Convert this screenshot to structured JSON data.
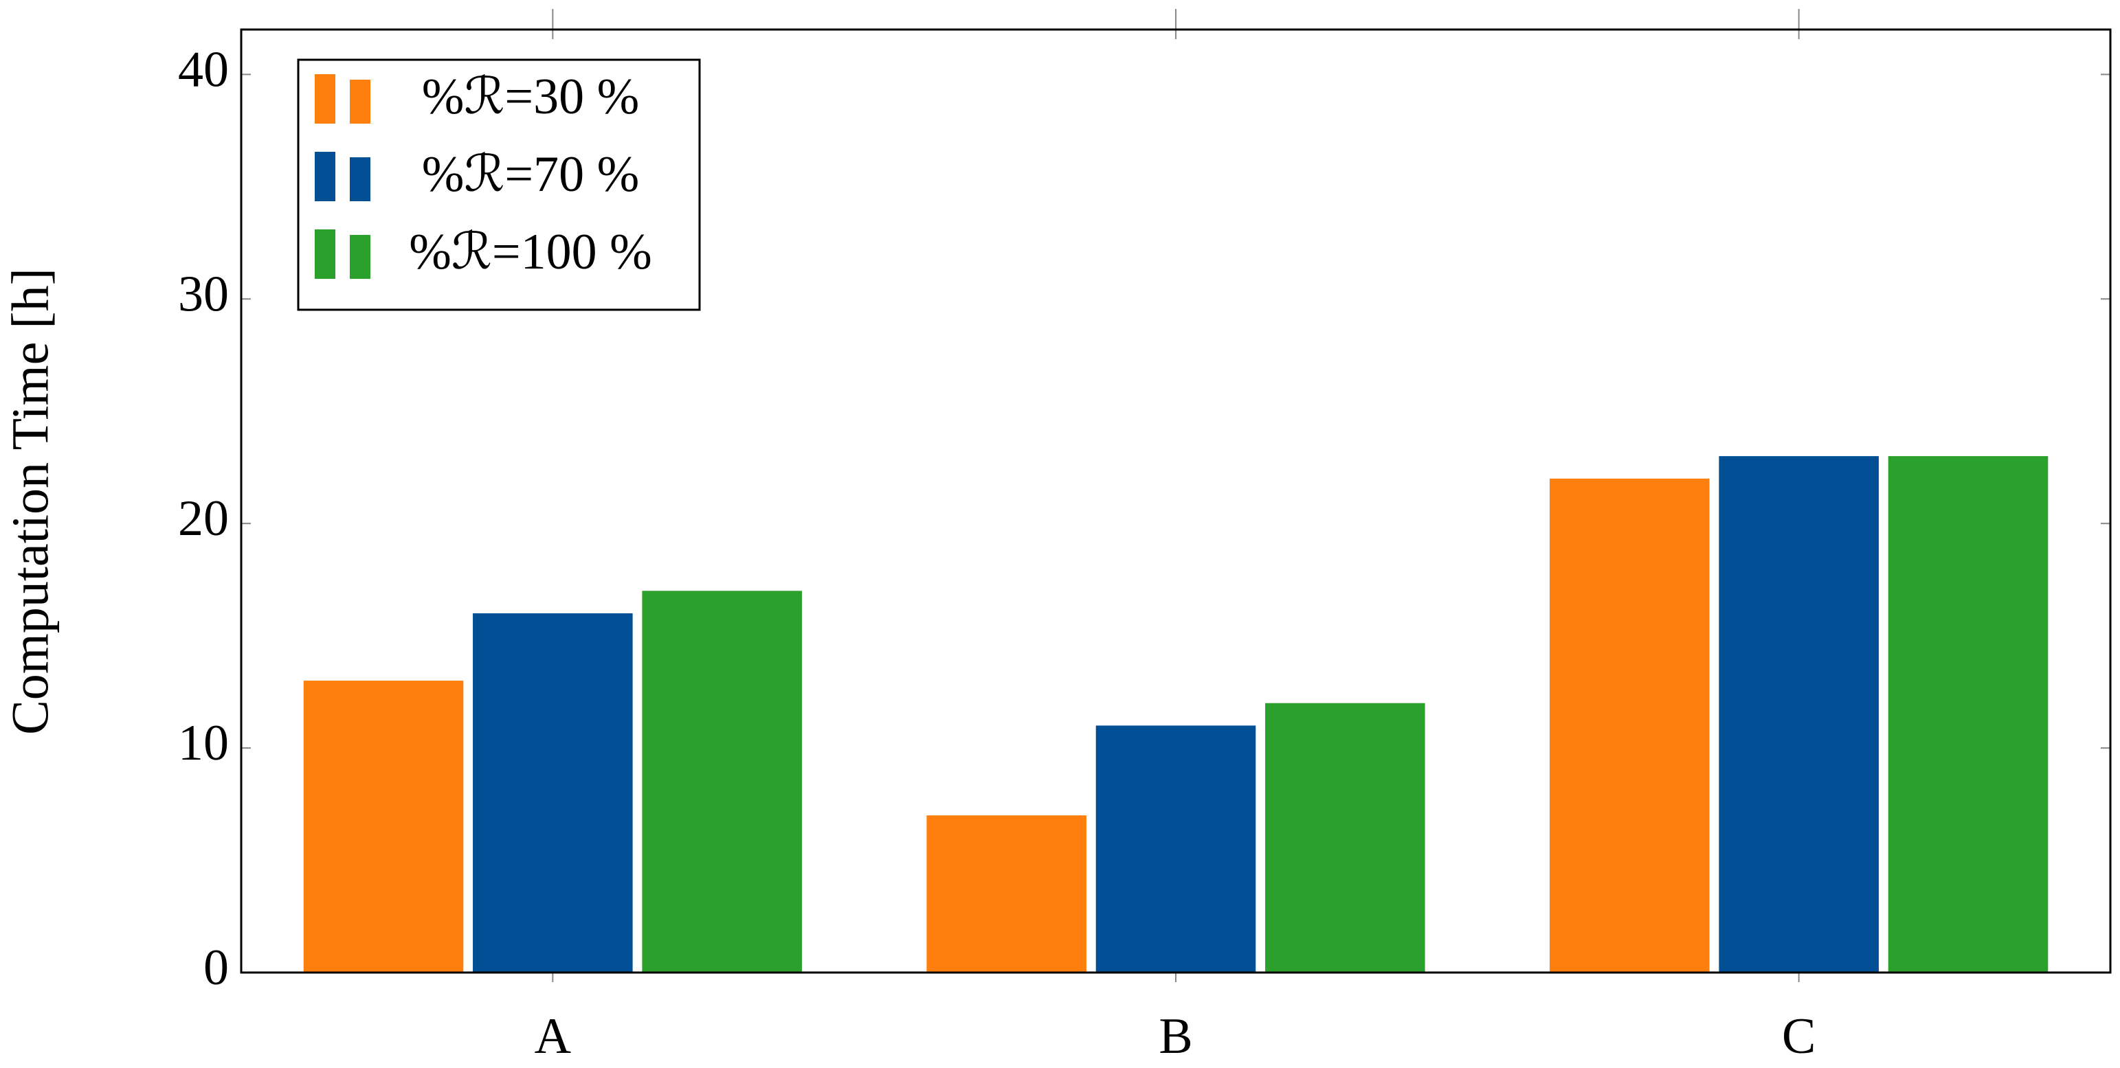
{
  "chart_data": {
    "type": "bar",
    "y_label": "Computation Time [h]",
    "categories": [
      "A",
      "B",
      "C"
    ],
    "series": [
      {
        "name": "%ℛ=30 %",
        "color": "#ff7f0e",
        "values": [
          13,
          7,
          22
        ]
      },
      {
        "name": "%ℛ=70 %",
        "color": "#024f95",
        "values": [
          16,
          11,
          23
        ]
      },
      {
        "name": "%ℛ=100 %",
        "color": "#2ca02c",
        "values": [
          17,
          12,
          23
        ]
      }
    ],
    "ylim": [
      0,
      42
    ],
    "yticks": [
      0,
      10,
      20,
      30,
      40
    ],
    "legend": "upper left"
  }
}
